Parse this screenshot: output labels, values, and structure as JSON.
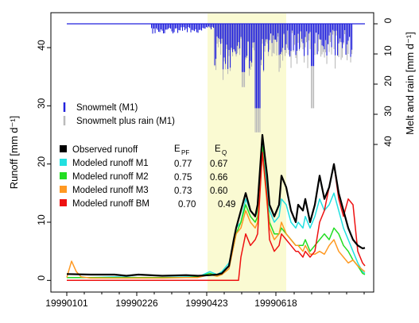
{
  "chart_data": {
    "type": "line",
    "title": "",
    "ylabel_left": "Runoff [mm d⁻¹]",
    "ylabel_right": "Melt and rain [mm d⁻¹]",
    "xlabel": "",
    "x_tick_labels": [
      "19990101",
      "19990226",
      "19990423",
      "19990618"
    ],
    "x_tick_days": [
      0,
      56,
      112,
      168
    ],
    "x_range_days": [
      -6,
      120
    ],
    "ylim_left": [
      -2,
      46
    ],
    "yticks_left": [
      0,
      10,
      20,
      30,
      40
    ],
    "ylim_right_inverted": [
      0,
      40
    ],
    "yticks_right": [
      0,
      10,
      20,
      30,
      40
    ],
    "highlight_period_days": [
      59,
      92
    ],
    "highlight_color": "#fafad2",
    "legend_top": [
      {
        "name": "Snowmelt (M1)",
        "color": "#2222dd"
      },
      {
        "name": "Snowmelt plus rain (M1)",
        "color": "#bbbbbb"
      }
    ],
    "stats_headers": [
      "E",
      "E"
    ],
    "stats_header_subs": [
      "PF",
      "Q"
    ],
    "series": [
      {
        "name": "Observed runoff",
        "color": "#000000",
        "width": 2.2,
        "epf": "",
        "eq": "",
        "x": [
          0,
          10,
          20,
          25,
          30,
          40,
          50,
          55,
          60,
          63,
          65,
          68,
          70,
          71,
          73,
          75,
          77,
          79,
          80,
          82,
          84,
          85,
          87,
          89,
          90,
          92,
          94,
          96,
          97,
          99,
          100,
          102,
          104,
          106,
          108,
          110,
          112,
          114,
          116,
          118,
          120,
          122,
          124,
          125
        ],
        "y": [
          1.1,
          1.0,
          1.0,
          0.8,
          1.0,
          0.8,
          0.9,
          0.8,
          0.9,
          1.0,
          1.2,
          2.5,
          7,
          9,
          12,
          15,
          12,
          11,
          13,
          25,
          18,
          13,
          11,
          13,
          18,
          16,
          12,
          10,
          13,
          12,
          14,
          10,
          13,
          18,
          14,
          16,
          20,
          15,
          12,
          9,
          7,
          6,
          5.5,
          5.6
        ]
      },
      {
        "name": "Modeled runoff M1",
        "color": "#22e0e0",
        "width": 1.5,
        "epf": "0.77",
        "eq": "0.67",
        "x": [
          0,
          10,
          20,
          30,
          40,
          50,
          55,
          60,
          63,
          65,
          68,
          70,
          71,
          73,
          75,
          77,
          79,
          80,
          82,
          84,
          85,
          87,
          89,
          90,
          92,
          94,
          96,
          97,
          99,
          100,
          102,
          104,
          106,
          108,
          110,
          112,
          114,
          116,
          118,
          120,
          122,
          124,
          125
        ],
        "y": [
          0.5,
          0.5,
          0.6,
          0.5,
          0.5,
          0.6,
          0.6,
          1.5,
          1.0,
          1.5,
          3,
          6,
          9,
          10,
          14,
          12,
          11,
          12,
          24,
          16,
          12,
          10,
          11,
          14,
          13,
          10,
          9,
          10,
          9,
          11,
          9,
          11,
          14,
          12,
          13,
          15,
          12,
          9,
          7,
          5,
          3,
          1.5,
          1.2
        ]
      },
      {
        "name": "Modeled runoff M2",
        "color": "#22dd22",
        "width": 1.5,
        "epf": "0.75",
        "eq": "0.66",
        "x": [
          0,
          10,
          20,
          30,
          40,
          50,
          55,
          60,
          63,
          65,
          68,
          70,
          71,
          73,
          75,
          77,
          79,
          80,
          82,
          84,
          85,
          87,
          89,
          90,
          92,
          94,
          96,
          97,
          99,
          100,
          102,
          104,
          106,
          108,
          110,
          112,
          114,
          116,
          118,
          120,
          122,
          124,
          125
        ],
        "y": [
          0.5,
          0.5,
          0.5,
          0.5,
          0.5,
          0.5,
          0.6,
          1.2,
          0.8,
          1.2,
          2.5,
          6,
          8,
          10,
          13,
          11,
          10,
          11,
          23,
          14,
          10,
          8,
          8,
          9,
          8,
          7,
          6,
          6,
          6,
          7,
          5,
          6,
          7,
          8,
          7,
          9,
          8,
          6,
          5,
          3.5,
          2.5,
          1.2,
          1.0
        ]
      },
      {
        "name": "Modeled runoff M3",
        "color": "#ff9922",
        "width": 1.5,
        "epf": "0.73",
        "eq": "0.60",
        "x": [
          0,
          2,
          4,
          6,
          10,
          20,
          30,
          40,
          50,
          55,
          60,
          63,
          65,
          68,
          70,
          71,
          73,
          75,
          77,
          79,
          80,
          82,
          84,
          85,
          87,
          89,
          90,
          92,
          94,
          96,
          97,
          99,
          100,
          102,
          104,
          106,
          108,
          110,
          112,
          114,
          116,
          118,
          120,
          122,
          124,
          125
        ],
        "y": [
          0.5,
          3.3,
          1.5,
          0.6,
          0.4,
          0.4,
          0.4,
          0.4,
          0.5,
          0.5,
          1.0,
          0.7,
          1.0,
          2.0,
          6,
          8,
          9,
          12,
          10,
          9,
          10,
          22,
          13,
          9,
          7,
          8,
          10,
          8,
          7,
          6,
          6,
          5,
          6,
          4.5,
          4.5,
          5,
          4.5,
          6,
          7,
          5,
          4,
          3,
          3.5,
          2.5,
          1.8,
          1.5
        ]
      },
      {
        "name": "Modeled runoff BM",
        "color": "#ee1111",
        "width": 1.5,
        "epf": "0.70",
        "eq": "0.49",
        "x": [
          0,
          10,
          20,
          30,
          40,
          50,
          55,
          60,
          63,
          65,
          70,
          72,
          73,
          75,
          77,
          79,
          80,
          82,
          84,
          85,
          87,
          89,
          90,
          92,
          94,
          96,
          97,
          99,
          100,
          102,
          104,
          106,
          108,
          110,
          112,
          114,
          116,
          118,
          120,
          122,
          124,
          125
        ],
        "y": [
          0,
          0,
          0,
          0,
          0,
          0,
          0,
          0,
          0,
          0,
          0,
          0,
          4,
          8,
          6,
          7,
          8,
          22,
          14,
          7,
          5,
          6,
          8,
          7,
          6,
          5,
          5,
          4,
          5,
          4,
          5,
          10,
          12,
          16,
          20,
          14,
          11,
          14,
          13,
          5,
          3,
          2.5
        ]
      }
    ]
  }
}
